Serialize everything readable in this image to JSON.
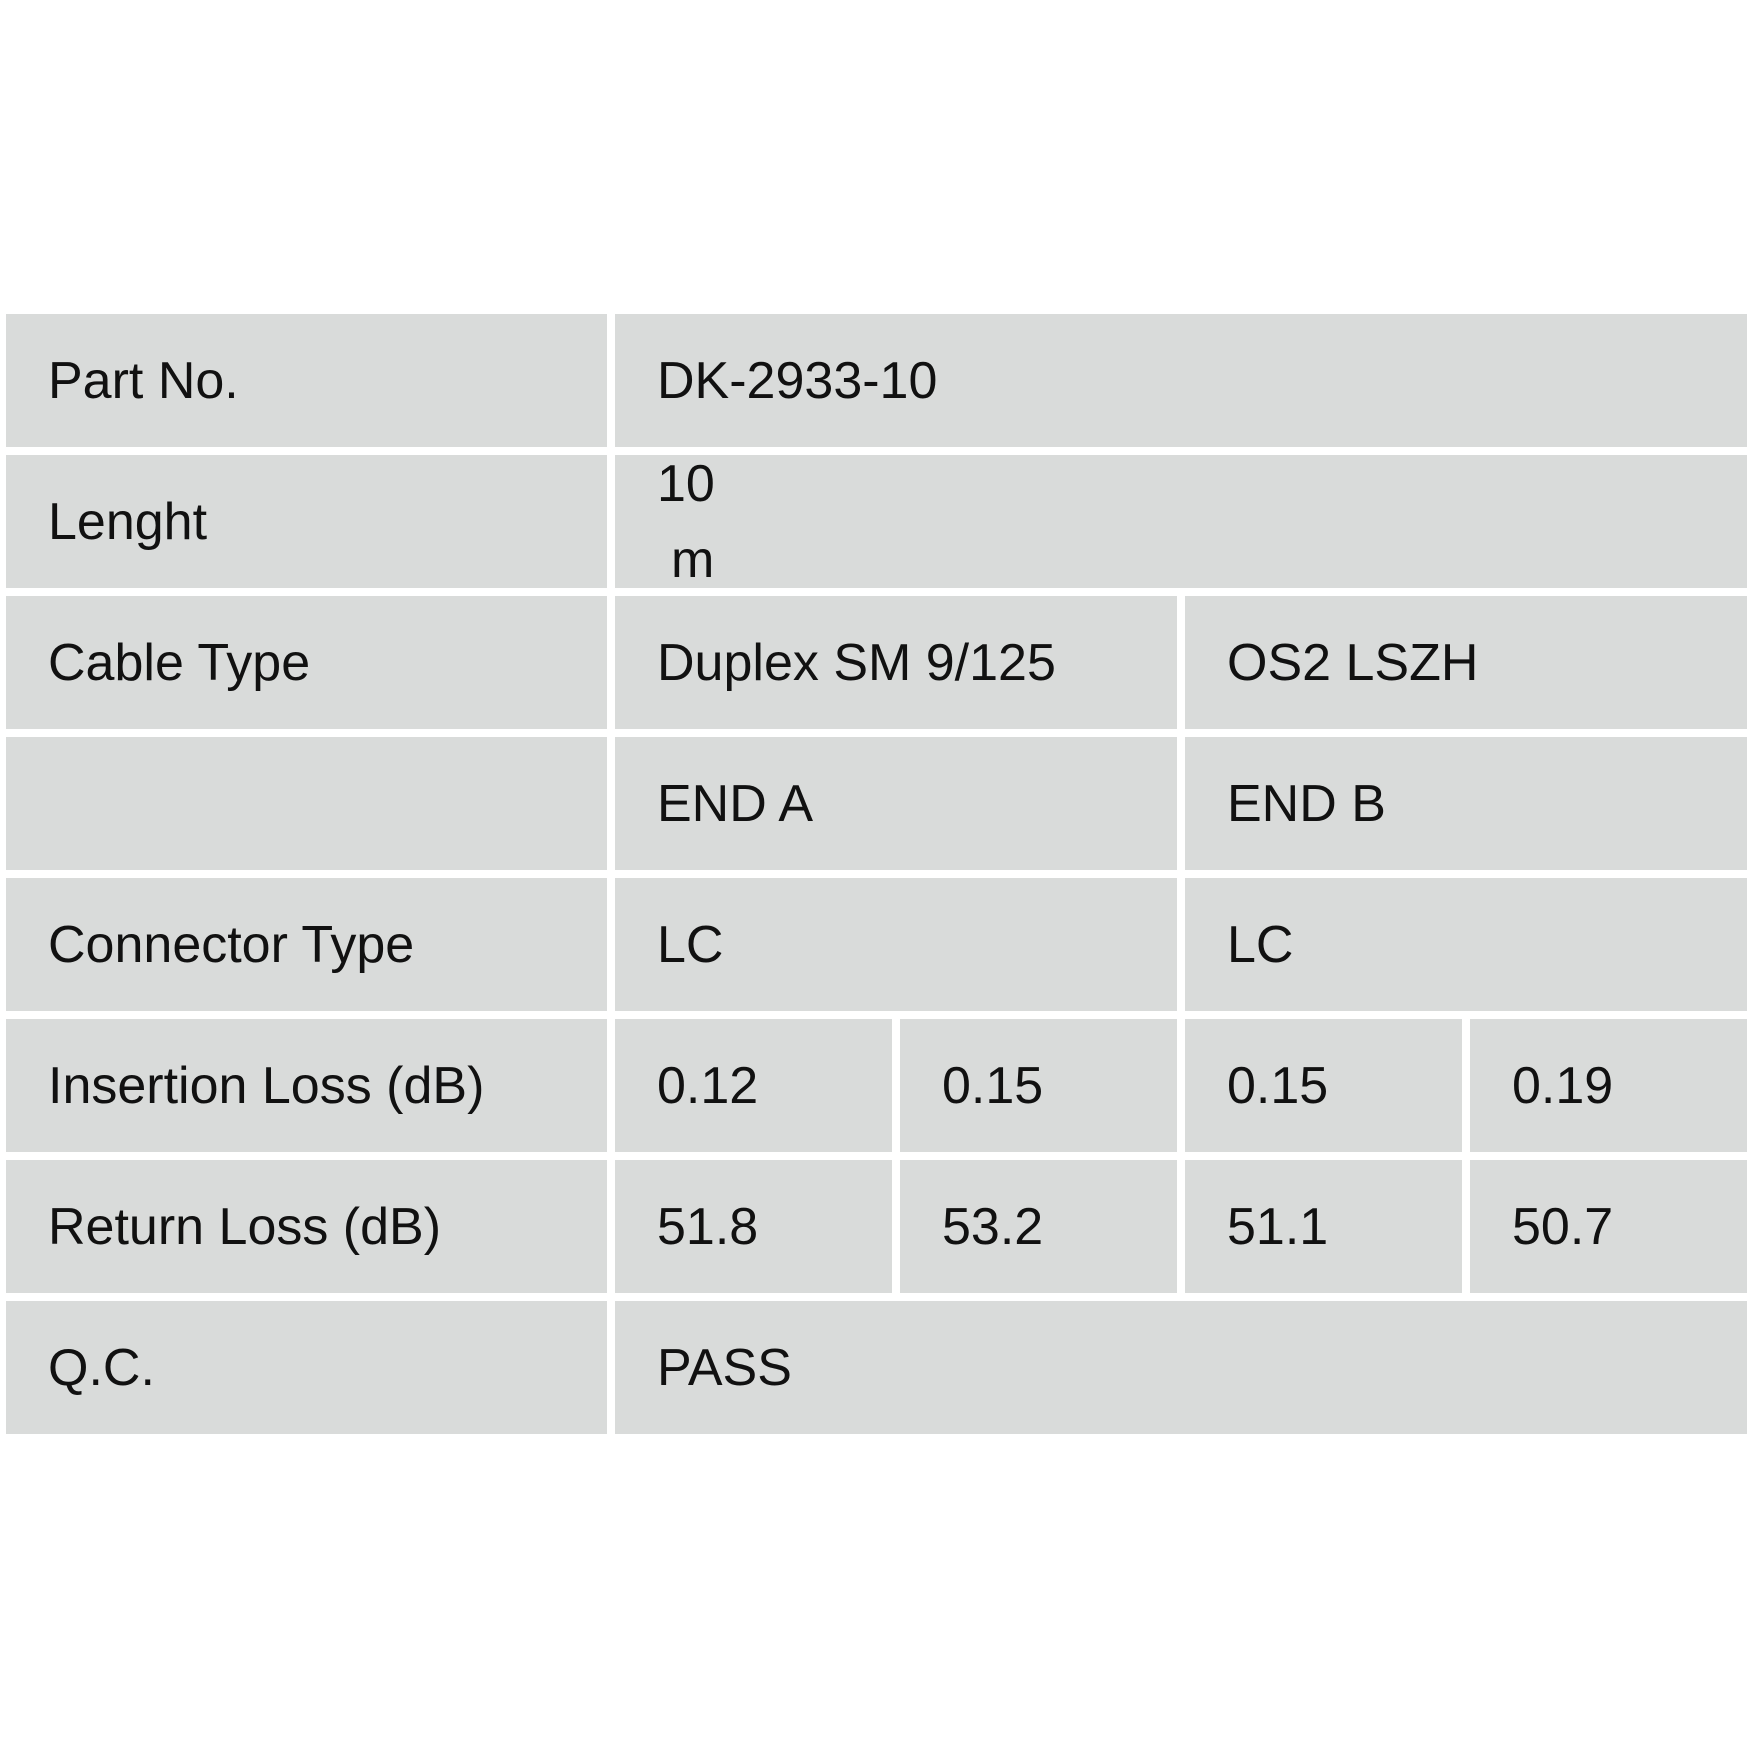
{
  "rows": {
    "part_no": {
      "label": "Part No.",
      "value": "DK-2933-10"
    },
    "length": {
      "label": "Lenght",
      "value": "10",
      "unit": "m"
    },
    "cable_type": {
      "label": "Cable Type",
      "value_a": "Duplex SM 9/125",
      "value_b": "OS2 LSZH"
    },
    "ends": {
      "label": "",
      "end_a": "END A",
      "end_b": "END B"
    },
    "connector_type": {
      "label": "Connector Type",
      "end_a": "LC",
      "end_b": "LC"
    },
    "insertion_loss": {
      "label": "Insertion Loss (dB)",
      "values": [
        "0.12",
        "0.15",
        "0.15",
        "0.19"
      ]
    },
    "return_loss": {
      "label": "Return Loss (dB)",
      "values": [
        "51.8",
        "53.2",
        "51.1",
        "50.7"
      ]
    },
    "qc": {
      "label": "Q.C.",
      "value": "PASS"
    }
  }
}
